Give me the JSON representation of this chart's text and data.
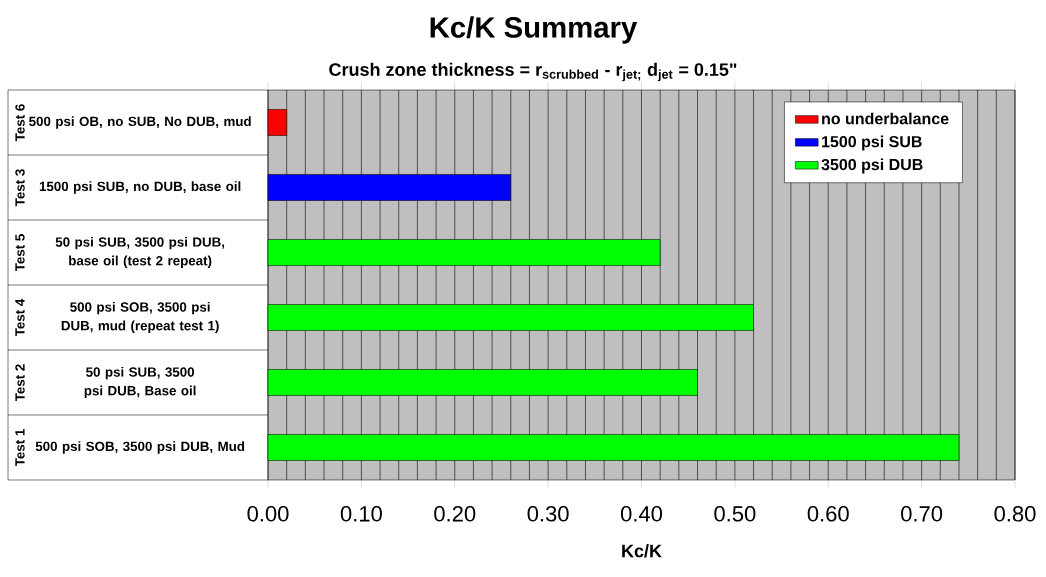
{
  "chart_data": {
    "type": "bar",
    "orientation": "horizontal",
    "title": "Kc/K Summary",
    "subtitle": "Crush zone thickness = r$_{scrubbed}$ - r$_{jet;}$ d$_{jet}$ = 0.15\"",
    "xlabel": "Kc/K",
    "categories": [
      "500 psi OB, no SUB, No DUB, mud",
      "1500 psi SUB, no DUB, base oil",
      "50 psi SUB, 3500 psi DUB, base oil (test 2 repeat)",
      "500 psi SOB, 3500 psi DUB, mud (repeat test 1)",
      "50 psi SUB, 3500 psi DUB, Base oil",
      "500 psi SOB, 3500 psi DUB, Mud"
    ],
    "annotations": [
      "Test 6",
      "Test 3",
      "Test 5",
      "Test 4",
      "Test 2",
      "Test 1"
    ],
    "series": [
      {
        "name": "no underbalance",
        "color": "#ff0000",
        "values": [
          0.02,
          null,
          null,
          null,
          null,
          null
        ]
      },
      {
        "name": "1500 psi SUB",
        "color": "#0000ff",
        "values": [
          null,
          0.26,
          null,
          null,
          null,
          null
        ]
      },
      {
        "name": "3500 psi DUB",
        "color": "#00ff00",
        "values": [
          null,
          null,
          0.42,
          0.52,
          0.46,
          0.74
        ]
      }
    ],
    "xlim": [
      0,
      0.8
    ],
    "xticks": [
      {
        "value": 0,
        "label": "0.00"
      },
      {
        "value": 0.02,
        "label": null
      },
      {
        "value": 0.04,
        "label": null
      },
      {
        "value": 0.06,
        "label": null
      },
      {
        "value": 0.08,
        "label": null
      },
      {
        "value": 0.1,
        "label": "0.10"
      },
      {
        "value": 0.12,
        "label": null
      },
      {
        "value": 0.14,
        "label": null
      },
      {
        "value": 0.16,
        "label": null
      },
      {
        "value": 0.18,
        "label": null
      },
      {
        "value": 0.2,
        "label": "0.20"
      },
      {
        "value": 0.22,
        "label": null
      },
      {
        "value": 0.24,
        "label": null
      },
      {
        "value": 0.26,
        "label": null
      },
      {
        "value": 0.28,
        "label": null
      },
      {
        "value": 0.3,
        "label": "0.30"
      },
      {
        "value": 0.32,
        "label": null
      },
      {
        "value": 0.34,
        "label": null
      },
      {
        "value": 0.36,
        "label": null
      },
      {
        "value": 0.38,
        "label": null
      },
      {
        "value": 0.4,
        "label": "0.40"
      },
      {
        "value": 0.42,
        "label": null
      },
      {
        "value": 0.44,
        "label": null
      },
      {
        "value": 0.46,
        "label": null
      },
      {
        "value": 0.48,
        "label": null
      },
      {
        "value": 0.5,
        "label": "0.50"
      },
      {
        "value": 0.52,
        "label": null
      },
      {
        "value": 0.54,
        "label": null
      },
      {
        "value": 0.56,
        "label": null
      },
      {
        "value": 0.58,
        "label": null
      },
      {
        "value": 0.6,
        "label": "0.60"
      },
      {
        "value": 0.62,
        "label": null
      },
      {
        "value": 0.64,
        "label": null
      },
      {
        "value": 0.66,
        "label": null
      },
      {
        "value": 0.68,
        "label": null
      },
      {
        "value": 0.7,
        "label": "0.70"
      },
      {
        "value": 0.72,
        "label": null
      },
      {
        "value": 0.74,
        "label": null
      },
      {
        "value": 0.76,
        "label": null
      },
      {
        "value": 0.78,
        "label": null
      },
      {
        "value": 0.8,
        "label": "0.80"
      }
    ],
    "grid": "x",
    "legend": "top right"
  }
}
